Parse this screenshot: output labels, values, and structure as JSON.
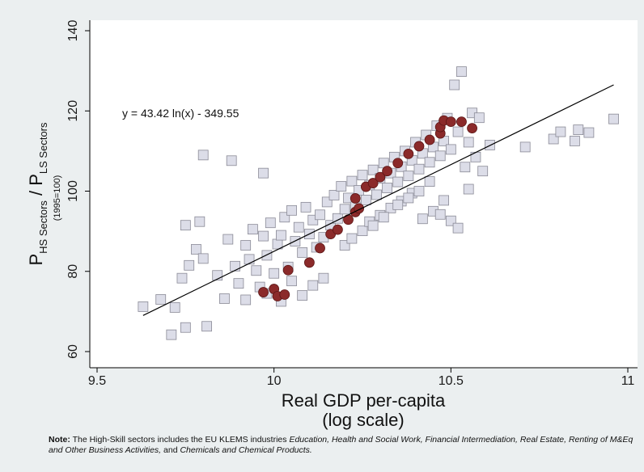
{
  "chart_data": {
    "type": "scatter",
    "xlabel_line1": "Real GDP per-capita",
    "xlabel_line2": "(log scale)",
    "ylabel": {
      "main_a": "P",
      "sub_a": "HS Sectors",
      "slash": " / P",
      "sub_b": "LS Sectors",
      "base": "(1995=100)"
    },
    "xlim": [
      9.5,
      11.0
    ],
    "ylim": [
      60,
      140
    ],
    "xticks": [
      "9.5",
      "10",
      "10.5",
      "11"
    ],
    "yticks": [
      "60",
      "80",
      "100",
      "120",
      "140"
    ],
    "grid": false,
    "annotation": "y = 43.42 ln(x) - 349.55",
    "fit_line": {
      "x": [
        9.63,
        10.96
      ],
      "y": [
        69.0,
        126.5
      ]
    },
    "colors": {
      "background": "#ebeff0",
      "square_fill": "#dcdde8",
      "square_stroke": "#8a8a96",
      "highlight": "#8b2a2a",
      "fit_line": "#000000"
    },
    "series": [
      {
        "marker": "square",
        "values": [
          [
            9.63,
            71.2
          ],
          [
            9.68,
            73.0
          ],
          [
            9.71,
            64.2
          ],
          [
            9.72,
            71.0
          ],
          [
            9.75,
            66.0
          ],
          [
            9.81,
            66.3
          ],
          [
            9.74,
            78.3
          ],
          [
            9.76,
            81.5
          ],
          [
            9.75,
            91.5
          ],
          [
            9.79,
            92.4
          ],
          [
            9.8,
            109.0
          ],
          [
            9.88,
            107.6
          ],
          [
            9.97,
            104.5
          ],
          [
            9.78,
            85.5
          ],
          [
            9.8,
            83.2
          ],
          [
            9.84,
            79.0
          ],
          [
            9.86,
            73.2
          ],
          [
            9.87,
            88.0
          ],
          [
            9.89,
            81.3
          ],
          [
            9.9,
            77.0
          ],
          [
            9.92,
            86.5
          ],
          [
            9.93,
            83.0
          ],
          [
            9.94,
            90.5
          ],
          [
            9.95,
            80.2
          ],
          [
            9.96,
            76.1
          ],
          [
            9.97,
            88.8
          ],
          [
            9.98,
            84.0
          ],
          [
            9.99,
            92.1
          ],
          [
            10.0,
            79.5
          ],
          [
            10.01,
            86.8
          ],
          [
            10.02,
            89.0
          ],
          [
            10.03,
            93.5
          ],
          [
            10.04,
            81.1
          ],
          [
            10.05,
            95.2
          ],
          [
            10.06,
            87.5
          ],
          [
            10.07,
            91.0
          ],
          [
            10.08,
            84.7
          ],
          [
            10.09,
            96.0
          ],
          [
            10.1,
            89.3
          ],
          [
            10.11,
            92.8
          ],
          [
            10.12,
            86.0
          ],
          [
            10.13,
            94.1
          ],
          [
            10.14,
            88.5
          ],
          [
            10.15,
            97.3
          ],
          [
            10.16,
            91.5
          ],
          [
            10.17,
            99.0
          ],
          [
            10.18,
            93.2
          ],
          [
            10.19,
            101.2
          ],
          [
            10.2,
            95.5
          ],
          [
            10.21,
            98.3
          ],
          [
            10.22,
            102.5
          ],
          [
            10.23,
            96.1
          ],
          [
            10.24,
            100.2
          ],
          [
            10.25,
            104.0
          ],
          [
            10.26,
            97.8
          ],
          [
            10.27,
            101.5
          ],
          [
            10.28,
            105.3
          ],
          [
            10.29,
            99.1
          ],
          [
            10.3,
            103.2
          ],
          [
            10.31,
            107.0
          ],
          [
            10.32,
            100.8
          ],
          [
            10.33,
            104.5
          ],
          [
            10.34,
            108.5
          ],
          [
            10.35,
            102.3
          ],
          [
            10.36,
            106.1
          ],
          [
            10.37,
            110.0
          ],
          [
            10.38,
            103.8
          ],
          [
            10.39,
            107.7
          ],
          [
            10.4,
            112.2
          ],
          [
            10.41,
            105.5
          ],
          [
            10.42,
            109.4
          ],
          [
            10.43,
            114.0
          ],
          [
            10.44,
            107.2
          ],
          [
            10.45,
            111.0
          ],
          [
            10.46,
            116.3
          ],
          [
            10.47,
            108.8
          ],
          [
            10.48,
            112.5
          ],
          [
            10.49,
            118.2
          ],
          [
            10.5,
            110.4
          ],
          [
            10.51,
            126.5
          ],
          [
            10.53,
            129.8
          ],
          [
            10.52,
            114.8
          ],
          [
            10.54,
            106.0
          ],
          [
            10.55,
            112.2
          ],
          [
            10.56,
            119.5
          ],
          [
            10.57,
            108.5
          ],
          [
            10.58,
            118.3
          ],
          [
            10.59,
            105.0
          ],
          [
            10.61,
            111.5
          ],
          [
            10.71,
            111.0
          ],
          [
            10.79,
            113.0
          ],
          [
            10.81,
            114.8
          ],
          [
            10.85,
            112.5
          ],
          [
            10.86,
            115.3
          ],
          [
            10.89,
            114.6
          ],
          [
            10.96,
            118.0
          ],
          [
            10.2,
            86.5
          ],
          [
            10.22,
            88.2
          ],
          [
            10.25,
            90.1
          ],
          [
            10.27,
            92.4
          ],
          [
            10.3,
            94.0
          ],
          [
            10.33,
            95.8
          ],
          [
            10.36,
            97.5
          ],
          [
            10.39,
            99.5
          ],
          [
            10.42,
            93.1
          ],
          [
            10.45,
            95.0
          ],
          [
            10.48,
            97.7
          ],
          [
            10.5,
            92.6
          ],
          [
            10.52,
            90.8
          ],
          [
            10.55,
            100.5
          ],
          [
            10.28,
            91.4
          ],
          [
            10.31,
            93.5
          ],
          [
            10.35,
            96.6
          ],
          [
            10.38,
            98.3
          ],
          [
            10.41,
            100.0
          ],
          [
            10.44,
            102.4
          ],
          [
            10.47,
            94.2
          ],
          [
            10.08,
            74.0
          ],
          [
            10.11,
            76.5
          ],
          [
            10.14,
            78.3
          ],
          [
            10.02,
            72.5
          ],
          [
            10.05,
            77.6
          ],
          [
            9.98,
            74.5
          ],
          [
            9.92,
            72.9
          ]
        ]
      },
      {
        "marker": "circle",
        "values": [
          [
            9.97,
            74.8
          ],
          [
            10.0,
            75.6
          ],
          [
            10.01,
            73.8
          ],
          [
            10.03,
            74.2
          ],
          [
            10.04,
            80.3
          ],
          [
            10.1,
            82.2
          ],
          [
            10.13,
            85.8
          ],
          [
            10.16,
            89.3
          ],
          [
            10.18,
            90.4
          ],
          [
            10.21,
            92.9
          ],
          [
            10.23,
            94.8
          ],
          [
            10.24,
            95.7
          ],
          [
            10.23,
            98.2
          ],
          [
            10.26,
            101.1
          ],
          [
            10.28,
            102.0
          ],
          [
            10.3,
            103.5
          ],
          [
            10.32,
            105.0
          ],
          [
            10.35,
            107.0
          ],
          [
            10.38,
            109.3
          ],
          [
            10.41,
            111.2
          ],
          [
            10.44,
            112.8
          ],
          [
            10.47,
            114.4
          ],
          [
            10.47,
            116.0
          ],
          [
            10.48,
            117.6
          ],
          [
            10.5,
            117.3
          ],
          [
            10.53,
            117.3
          ],
          [
            10.56,
            115.7
          ]
        ]
      }
    ]
  },
  "note": {
    "label": "Note:",
    "t1": " The High-Skill sectors includes the EU KLEMS industries ",
    "i1": "Education, Health and Social Work, Financial Intermediation, Real Estate, Renting of M&Eq and Other Business Activities,",
    "t2": " and ",
    "i2": "Chemicals and Chemical Products.",
    "t3": ""
  }
}
